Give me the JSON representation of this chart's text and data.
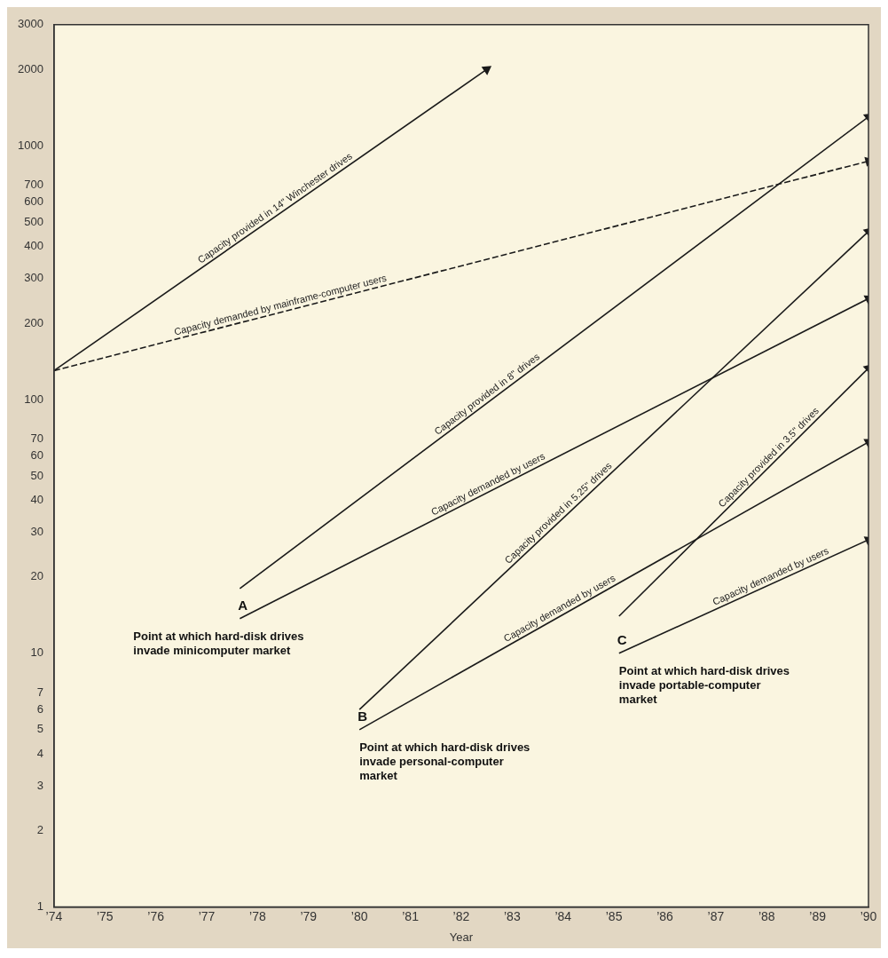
{
  "chart_data": {
    "type": "line",
    "xlabel": "Year",
    "legend": false,
    "grid": false,
    "log": "y",
    "marker": "triangle",
    "xlim": [
      74,
      90
    ],
    "xticks": [
      {
        "value": 74,
        "label": "’74"
      },
      {
        "value": 75,
        "label": "’75"
      },
      {
        "value": 76,
        "label": "’76"
      },
      {
        "value": 77,
        "label": "’77"
      },
      {
        "value": 78,
        "label": "’78"
      },
      {
        "value": 79,
        "label": "’79"
      },
      {
        "value": 80,
        "label": "’80"
      },
      {
        "value": 81,
        "label": "’81"
      },
      {
        "value": 82,
        "label": "’82"
      },
      {
        "value": 83,
        "label": "’83"
      },
      {
        "value": 84,
        "label": "’84"
      },
      {
        "value": 85,
        "label": "’85"
      },
      {
        "value": 86,
        "label": "’86"
      },
      {
        "value": 87,
        "label": "’87"
      },
      {
        "value": 88,
        "label": "’88"
      },
      {
        "value": 89,
        "label": "’89"
      },
      {
        "value": 90,
        "label": "’90"
      }
    ],
    "ylim": [
      1,
      3000
    ],
    "yticks": [
      1,
      2,
      3,
      4,
      5,
      6,
      7,
      10,
      20,
      30,
      40,
      50,
      60,
      70,
      100,
      200,
      300,
      400,
      500,
      600,
      700,
      1000,
      2000,
      3000
    ],
    "series": [
      {
        "name": "Capacity provided in 14\" Winchester drives",
        "color": "#1a1a1a",
        "x": [
          74,
          82.5
        ],
        "values": [
          130,
          2000
        ]
      },
      {
        "name": "Capacity demanded by mainframe-computer users",
        "color": "#1a1a1a",
        "line_style": "dashed",
        "x": [
          74,
          90
        ],
        "values": [
          130,
          870
        ]
      },
      {
        "name": "Capacity provided in 8\" drives",
        "color": "#1a1a1a",
        "x": [
          77.65,
          90
        ],
        "values": [
          18,
          1300
        ]
      },
      {
        "name": "Capacity demanded by users",
        "color": "#1a1a1a",
        "x": [
          77.65,
          90
        ],
        "values": [
          13.7,
          250
        ]
      },
      {
        "name": "Capacity provided in 5.25\" drives",
        "color": "#1a1a1a",
        "x": [
          80,
          90
        ],
        "values": [
          6,
          460
        ]
      },
      {
        "name": "Capacity demanded by users",
        "color": "#1a1a1a",
        "x": [
          80,
          90
        ],
        "values": [
          5,
          68
        ]
      },
      {
        "name": "Capacity provided in 3.5\" drives",
        "color": "#1a1a1a",
        "x": [
          85.1,
          90
        ],
        "values": [
          14,
          133
        ]
      },
      {
        "name": "Capacity demanded by users",
        "color": "#1a1a1a",
        "x": [
          85.1,
          90
        ],
        "values": [
          10,
          28
        ]
      }
    ],
    "annotations": [
      {
        "text": "A",
        "x": 77.65,
        "y": 13.7
      },
      {
        "text": "Point at which hard-disk drives invade minicomputer market",
        "x": 77.65,
        "y": 13.7
      },
      {
        "text": "B",
        "x": 80,
        "y": 5
      },
      {
        "text": "Point at which hard-disk drives invade personal-computer market",
        "x": 80,
        "y": 5
      },
      {
        "text": "C",
        "x": 85.1,
        "y": 10
      },
      {
        "text": "Point at which hard-disk drives invade portable-computer market",
        "x": 85.1,
        "y": 10
      }
    ]
  }
}
